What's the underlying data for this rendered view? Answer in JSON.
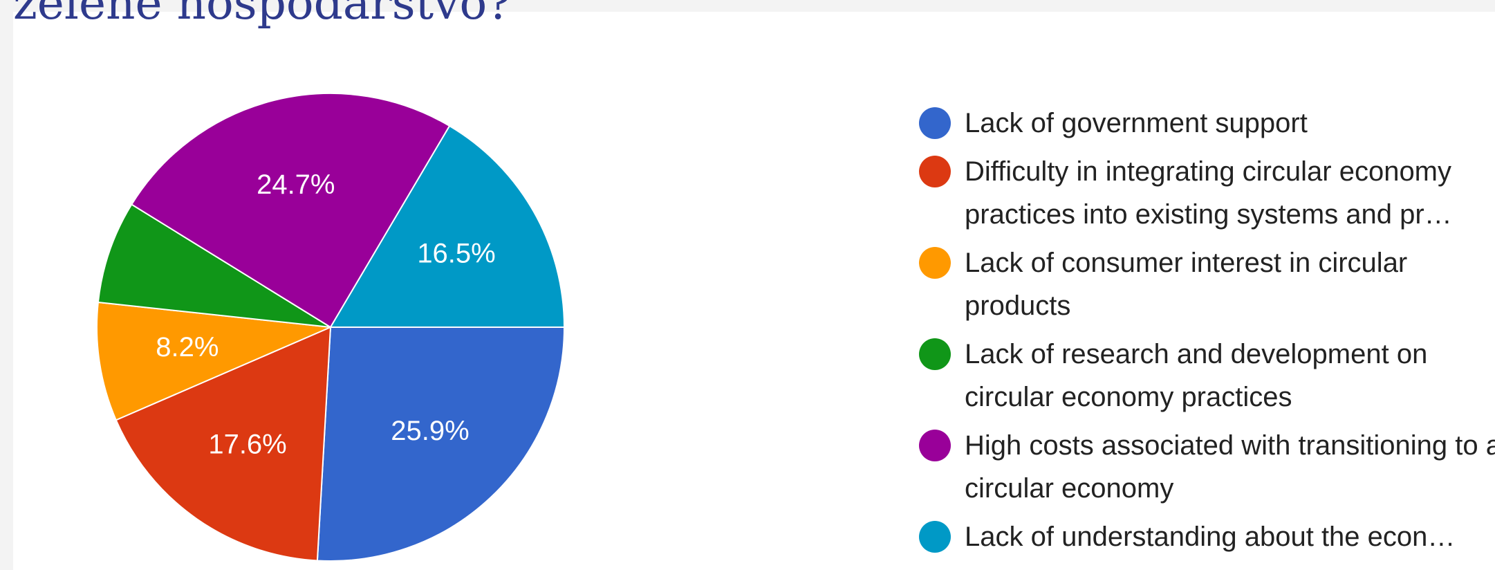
{
  "chart_data": {
    "type": "pie",
    "title": "zelené hospodárstvo?",
    "series": [
      {
        "name": "Lack of government support",
        "color": "#3366cc"
      },
      {
        "name": "Difficulty in integrating circular economy practices into existing systems and pr…",
        "color": "#dc3912"
      },
      {
        "name": "Lack of consumer interest in circular products",
        "color": "#ff9900"
      },
      {
        "name": "Lack of research and development on circular economy practices",
        "color": "#109618"
      },
      {
        "name": "High costs associated with transitioning to a circular economy",
        "color": "#990099"
      },
      {
        "name": "Lack of understanding about the econ…",
        "color": "#0099c6"
      }
    ],
    "values": [
      25.9,
      17.6,
      8.2,
      7.1,
      24.7,
      16.5
    ],
    "value_labels": [
      "25.9%",
      "17.6%",
      "8.2%",
      null,
      "24.7%",
      "16.5%"
    ]
  }
}
